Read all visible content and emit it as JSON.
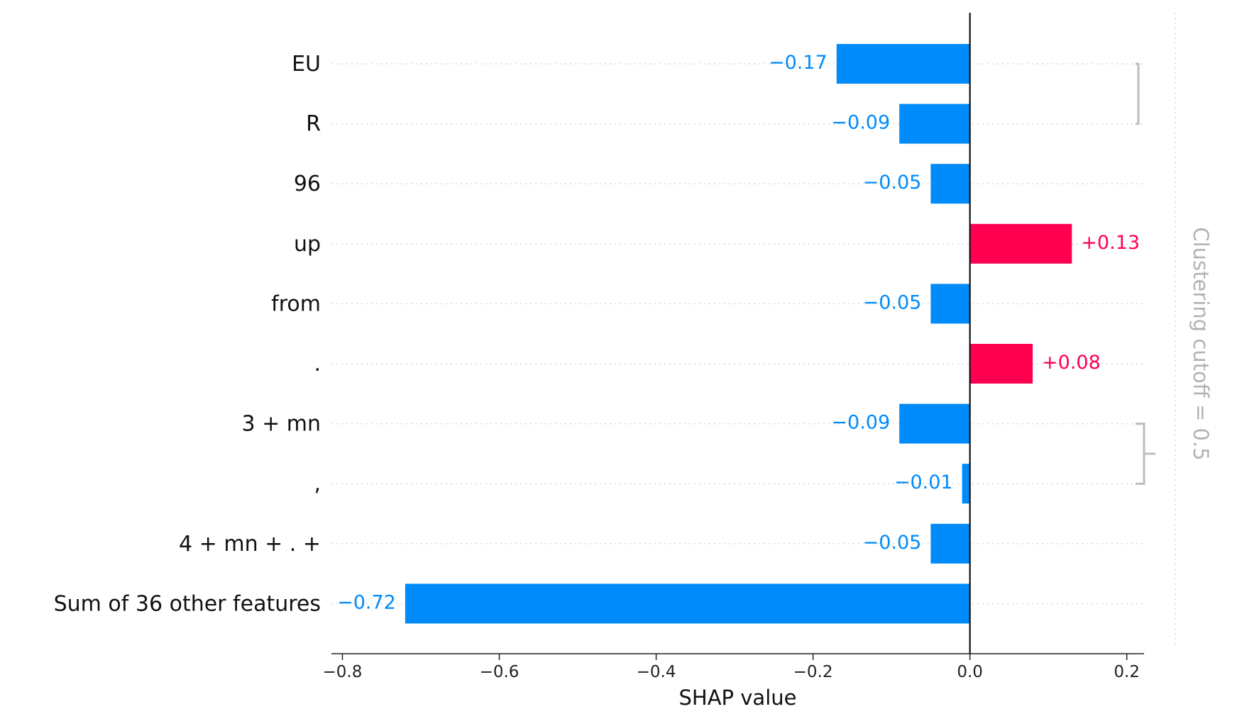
{
  "chart_data": {
    "type": "bar",
    "orientation": "horizontal",
    "features": [
      "EU",
      "R",
      "96",
      "up",
      "from",
      ".",
      "3 + mn",
      ",",
      "4 + mn + . + ",
      "Sum of 36 other features"
    ],
    "values": [
      -0.17,
      -0.09,
      -0.05,
      0.13,
      -0.05,
      0.08,
      -0.09,
      -0.01,
      -0.05,
      -0.72
    ],
    "value_labels": [
      "−0.17",
      "−0.09",
      "−0.05",
      "+0.13",
      "−0.05",
      "+0.08",
      "−0.09",
      "−0.01",
      "−0.05",
      "−0.72"
    ],
    "x_ticks": [
      -0.8,
      -0.6,
      -0.4,
      -0.2,
      0.0,
      0.2
    ],
    "x_tick_labels": [
      "−0.8",
      "−0.6",
      "−0.4",
      "−0.2",
      "0.0",
      "0.2"
    ],
    "xlim": [
      -0.814,
      0.222
    ],
    "xlabel": "SHAP value",
    "ylabel": "",
    "grid": "dotted horizontal gridlines",
    "colors": {
      "positive": "#ff0051",
      "negative": "#008bfb",
      "zero_line": "#111111",
      "dendrogram": "#bdbdbd",
      "cutoff_text": "#b3b3b3"
    },
    "clustering": {
      "label": "Clustering cutoff = 0.5",
      "merges": [
        {
          "left": 0,
          "right": 1,
          "height": 0.06
        },
        {
          "left": 10,
          "right": 2,
          "height": 0.12
        },
        {
          "left": 11,
          "right": 3,
          "height": 0.16
        },
        {
          "left": 12,
          "right": 4,
          "height": 0.2
        },
        {
          "left": 13,
          "right": 5,
          "height": 0.24
        },
        {
          "left": 6,
          "right": 7,
          "height": 0.18
        },
        {
          "left": 14,
          "right": 15,
          "height": 0.42
        },
        {
          "left": 16,
          "right": 8,
          "height": 0.6
        }
      ]
    }
  }
}
